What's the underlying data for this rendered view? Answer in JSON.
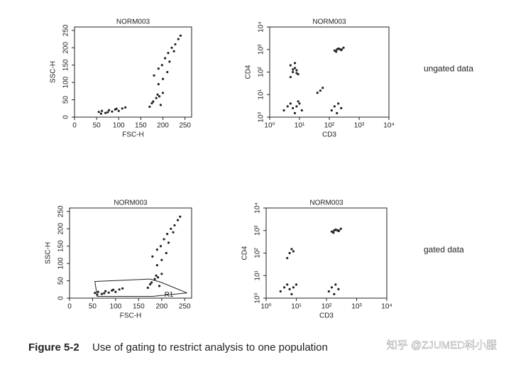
{
  "chart_data": [
    {
      "type": "scatter",
      "title": "NORM003",
      "xlabel": "FSC-H",
      "ylabel": "SSC-H",
      "color": "#222",
      "xlim": [
        0,
        265
      ],
      "ylim": [
        0,
        260
      ],
      "xticks": [
        0,
        50,
        100,
        150,
        200,
        250
      ],
      "yticks": [
        0,
        50,
        100,
        150,
        200,
        250
      ],
      "x": [
        55,
        62,
        70,
        78,
        85,
        92,
        100,
        108,
        115,
        60,
        75,
        95,
        170,
        178,
        185,
        192,
        200,
        175,
        188,
        195,
        180,
        190,
        198,
        205,
        212,
        220,
        228,
        235,
        200,
        215,
        225,
        190,
        210,
        240
      ],
      "y": [
        15,
        18,
        12,
        20,
        16,
        22,
        18,
        25,
        28,
        10,
        14,
        24,
        30,
        45,
        55,
        60,
        70,
        40,
        65,
        35,
        120,
        140,
        150,
        170,
        185,
        200,
        210,
        225,
        110,
        160,
        190,
        95,
        130,
        235
      ],
      "side_label": "ungated data"
    },
    {
      "type": "scatter",
      "title": "NORM003",
      "xlabel": "CD3",
      "ylabel": "CD4",
      "color": "#222",
      "log": true,
      "xlim": [
        1,
        10000
      ],
      "ylim": [
        1,
        10000
      ],
      "xticks": [
        {
          "value": 1,
          "label": "10⁰"
        },
        {
          "value": 10,
          "label": "10¹"
        },
        {
          "value": 100,
          "label": "10²"
        },
        {
          "value": 1000,
          "label": "10³"
        },
        {
          "value": 10000,
          "label": "10⁴"
        }
      ],
      "yticks": [
        {
          "value": 1,
          "label": "10⁰"
        },
        {
          "value": 10,
          "label": "10¹"
        },
        {
          "value": 100,
          "label": "10²"
        },
        {
          "value": 1000,
          "label": "10³"
        },
        {
          "value": 10000,
          "label": "10⁴"
        }
      ],
      "x": [
        5,
        6,
        7,
        8,
        9,
        5,
        7,
        8,
        6,
        3,
        4,
        5,
        6,
        8,
        10,
        12,
        7,
        9,
        150,
        180,
        200,
        250,
        300,
        220,
        170,
        260,
        120,
        150,
        200,
        250,
        180,
        40,
        50,
        60
      ],
      "y": [
        60,
        100,
        150,
        120,
        80,
        200,
        250,
        90,
        130,
        2,
        3,
        4,
        2.5,
        3,
        4,
        2,
        1.5,
        5,
        900,
        1000,
        1100,
        950,
        1200,
        1050,
        800,
        1000,
        2,
        3,
        4,
        2.5,
        1.5,
        12,
        15,
        20
      ]
    },
    {
      "type": "scatter",
      "title": "NORM003",
      "xlabel": "FSC-H",
      "ylabel": "SSC-H",
      "color": "#222",
      "xlim": [
        0,
        265
      ],
      "ylim": [
        0,
        260
      ],
      "xticks": [
        0,
        50,
        100,
        150,
        200,
        250
      ],
      "yticks": [
        0,
        50,
        100,
        150,
        200,
        250
      ],
      "x": [
        55,
        62,
        70,
        78,
        85,
        92,
        100,
        108,
        115,
        60,
        75,
        95,
        170,
        178,
        185,
        192,
        200,
        175,
        188,
        195,
        180,
        190,
        198,
        205,
        212,
        220,
        228,
        235,
        200,
        215,
        225,
        190,
        210,
        240
      ],
      "y": [
        15,
        18,
        12,
        20,
        16,
        22,
        18,
        25,
        28,
        10,
        14,
        24,
        30,
        45,
        55,
        60,
        70,
        40,
        65,
        35,
        120,
        140,
        150,
        170,
        185,
        200,
        210,
        225,
        110,
        160,
        190,
        95,
        130,
        235
      ],
      "gate_label": "R1",
      "gate_x": [
        55,
        175,
        200,
        255,
        180,
        60
      ],
      "gate_y": [
        48,
        55,
        45,
        15,
        5,
        5
      ],
      "side_label": "gated data"
    },
    {
      "type": "scatter",
      "title": "NORM003",
      "xlabel": "CD3",
      "ylabel": "CD4",
      "color": "#222",
      "log": true,
      "xlim": [
        1,
        10000
      ],
      "ylim": [
        1,
        10000
      ],
      "xticks": [
        {
          "value": 1,
          "label": "10⁰"
        },
        {
          "value": 10,
          "label": "10¹"
        },
        {
          "value": 100,
          "label": "10²"
        },
        {
          "value": 1000,
          "label": "10³"
        },
        {
          "value": 10000,
          "label": "10⁴"
        }
      ],
      "yticks": [
        {
          "value": 1,
          "label": "10⁰"
        },
        {
          "value": 10,
          "label": "10¹"
        },
        {
          "value": 100,
          "label": "10²"
        },
        {
          "value": 1000,
          "label": "10³"
        },
        {
          "value": 10000,
          "label": "10⁴"
        }
      ],
      "x": [
        5,
        6,
        7,
        8,
        3,
        4,
        5,
        6,
        8,
        10,
        7,
        150,
        180,
        200,
        250,
        300,
        220,
        170,
        260,
        120,
        150,
        200,
        250,
        180
      ],
      "y": [
        60,
        100,
        150,
        120,
        2,
        3,
        4,
        2.5,
        3,
        4,
        1.5,
        900,
        1000,
        1100,
        950,
        1200,
        1050,
        800,
        1000,
        2,
        3,
        4,
        2.5,
        1.5
      ]
    }
  ],
  "caption": {
    "label": "Figure 5-2",
    "text": "Use of gating to restrict analysis to one population"
  },
  "watermark": "知乎 @ZJUMED科小服"
}
